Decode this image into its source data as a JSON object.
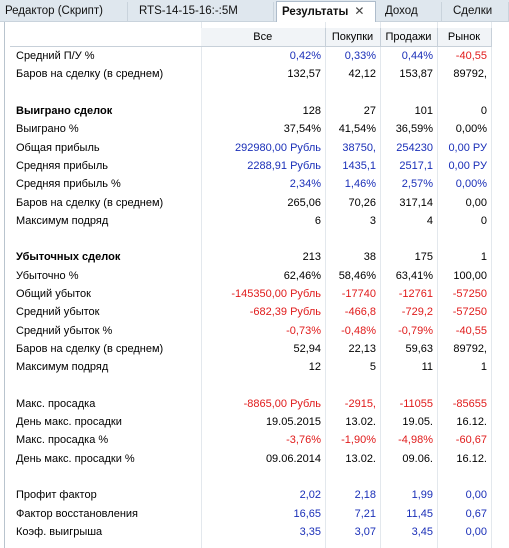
{
  "tabs": [
    {
      "label": "Редактор (Скрипт)",
      "active": false
    },
    {
      "label": "RTS-14-15-16:-:5M",
      "active": false
    },
    {
      "label": "Результаты",
      "active": true
    },
    {
      "label": "Доход",
      "active": false
    },
    {
      "label": "Сделки",
      "active": false
    }
  ],
  "close_glyph": "✕",
  "columns": [
    "Все",
    "Покупки",
    "Продажи",
    "Рынок"
  ],
  "rows": [
    {
      "label": "Средний П/У %",
      "values": [
        "0,42%",
        "0,33%",
        "0,44%",
        "-40,55"
      ],
      "colors": [
        "blue",
        "blue",
        "blue",
        "red"
      ]
    },
    {
      "label": "Баров на сделку (в среднем)",
      "values": [
        "132,57",
        "42,12",
        "153,87",
        "89792,"
      ],
      "colors": [
        "black",
        "black",
        "black",
        "black"
      ]
    },
    {
      "label": "",
      "values": [
        "",
        "",
        "",
        ""
      ],
      "colors": [
        "black",
        "black",
        "black",
        "black"
      ]
    },
    {
      "label": "Выиграно сделок",
      "section": true,
      "values": [
        "128",
        "27",
        "101",
        "0"
      ],
      "colors": [
        "black",
        "black",
        "black",
        "black"
      ]
    },
    {
      "label": "Выиграно %",
      "values": [
        "37,54%",
        "41,54%",
        "36,59%",
        "0,00%"
      ],
      "colors": [
        "black",
        "black",
        "black",
        "black"
      ]
    },
    {
      "label": "Общая прибыль",
      "values": [
        "292980,00 Рубль",
        "38750,",
        "254230",
        "0,00 РУ"
      ],
      "colors": [
        "blue",
        "blue",
        "blue",
        "blue"
      ]
    },
    {
      "label": "Средняя прибыль",
      "values": [
        "2288,91 Рубль",
        "1435,1",
        "2517,1",
        "0,00 РУ"
      ],
      "colors": [
        "blue",
        "blue",
        "blue",
        "blue"
      ]
    },
    {
      "label": "Средняя прибыль %",
      "values": [
        "2,34%",
        "1,46%",
        "2,57%",
        "0,00%"
      ],
      "colors": [
        "blue",
        "blue",
        "blue",
        "blue"
      ]
    },
    {
      "label": "Баров на сделку (в среднем)",
      "values": [
        "265,06",
        "70,26",
        "317,14",
        "0,00"
      ],
      "colors": [
        "black",
        "black",
        "black",
        "black"
      ]
    },
    {
      "label": "Максимум подряд",
      "values": [
        "6",
        "3",
        "4",
        "0"
      ],
      "colors": [
        "black",
        "black",
        "black",
        "black"
      ]
    },
    {
      "label": "",
      "values": [
        "",
        "",
        "",
        ""
      ],
      "colors": [
        "black",
        "black",
        "black",
        "black"
      ]
    },
    {
      "label": "Убыточных сделок",
      "section": true,
      "values": [
        "213",
        "38",
        "175",
        "1"
      ],
      "colors": [
        "black",
        "black",
        "black",
        "black"
      ]
    },
    {
      "label": "Убыточно %",
      "values": [
        "62,46%",
        "58,46%",
        "63,41%",
        "100,00"
      ],
      "colors": [
        "black",
        "black",
        "black",
        "black"
      ]
    },
    {
      "label": "Общий убыток",
      "values": [
        "-145350,00 Рубль",
        "-17740",
        "-12761",
        "-57250"
      ],
      "colors": [
        "red",
        "red",
        "red",
        "red"
      ]
    },
    {
      "label": "Средний убыток",
      "values": [
        "-682,39 Рубль",
        "-466,8",
        "-729,2",
        "-57250"
      ],
      "colors": [
        "red",
        "red",
        "red",
        "red"
      ]
    },
    {
      "label": "Средний убыток %",
      "values": [
        "-0,73%",
        "-0,48%",
        "-0,79%",
        "-40,55"
      ],
      "colors": [
        "red",
        "red",
        "red",
        "red"
      ]
    },
    {
      "label": "Баров на сделку (в среднем)",
      "values": [
        "52,94",
        "22,13",
        "59,63",
        "89792,"
      ],
      "colors": [
        "black",
        "black",
        "black",
        "black"
      ]
    },
    {
      "label": "Максимум подряд",
      "values": [
        "12",
        "5",
        "11",
        "1"
      ],
      "colors": [
        "black",
        "black",
        "black",
        "black"
      ]
    },
    {
      "label": "",
      "values": [
        "",
        "",
        "",
        ""
      ],
      "colors": [
        "black",
        "black",
        "black",
        "black"
      ]
    },
    {
      "label": "Макс. просадка",
      "values": [
        "-8865,00 Рубль",
        "-2915,",
        "-11055",
        "-85655"
      ],
      "colors": [
        "red",
        "red",
        "red",
        "red"
      ]
    },
    {
      "label": "День макс. просадки",
      "values": [
        "19.05.2015",
        "13.02.",
        "19.05.",
        "16.12."
      ],
      "colors": [
        "black",
        "black",
        "black",
        "black"
      ]
    },
    {
      "label": "Макс. просадка %",
      "values": [
        "-3,76%",
        "-1,90%",
        "-4,98%",
        "-60,67"
      ],
      "colors": [
        "red",
        "red",
        "red",
        "red"
      ]
    },
    {
      "label": "День макс. просадки %",
      "values": [
        "09.06.2014",
        "13.02.",
        "09.06.",
        "16.12."
      ],
      "colors": [
        "black",
        "black",
        "black",
        "black"
      ]
    },
    {
      "label": "",
      "values": [
        "",
        "",
        "",
        ""
      ],
      "colors": [
        "black",
        "black",
        "black",
        "black"
      ]
    },
    {
      "label": "Профит фактор",
      "values": [
        "2,02",
        "2,18",
        "1,99",
        "0,00"
      ],
      "colors": [
        "blue",
        "blue",
        "blue",
        "blue"
      ]
    },
    {
      "label": "Фактор восстановления",
      "values": [
        "16,65",
        "7,21",
        "11,45",
        "0,67"
      ],
      "colors": [
        "blue",
        "blue",
        "blue",
        "blue"
      ]
    },
    {
      "label": "Коэф. выигрыша",
      "values": [
        "3,35",
        "3,07",
        "3,45",
        "0,00"
      ],
      "colors": [
        "blue",
        "blue",
        "blue",
        "blue"
      ]
    }
  ]
}
